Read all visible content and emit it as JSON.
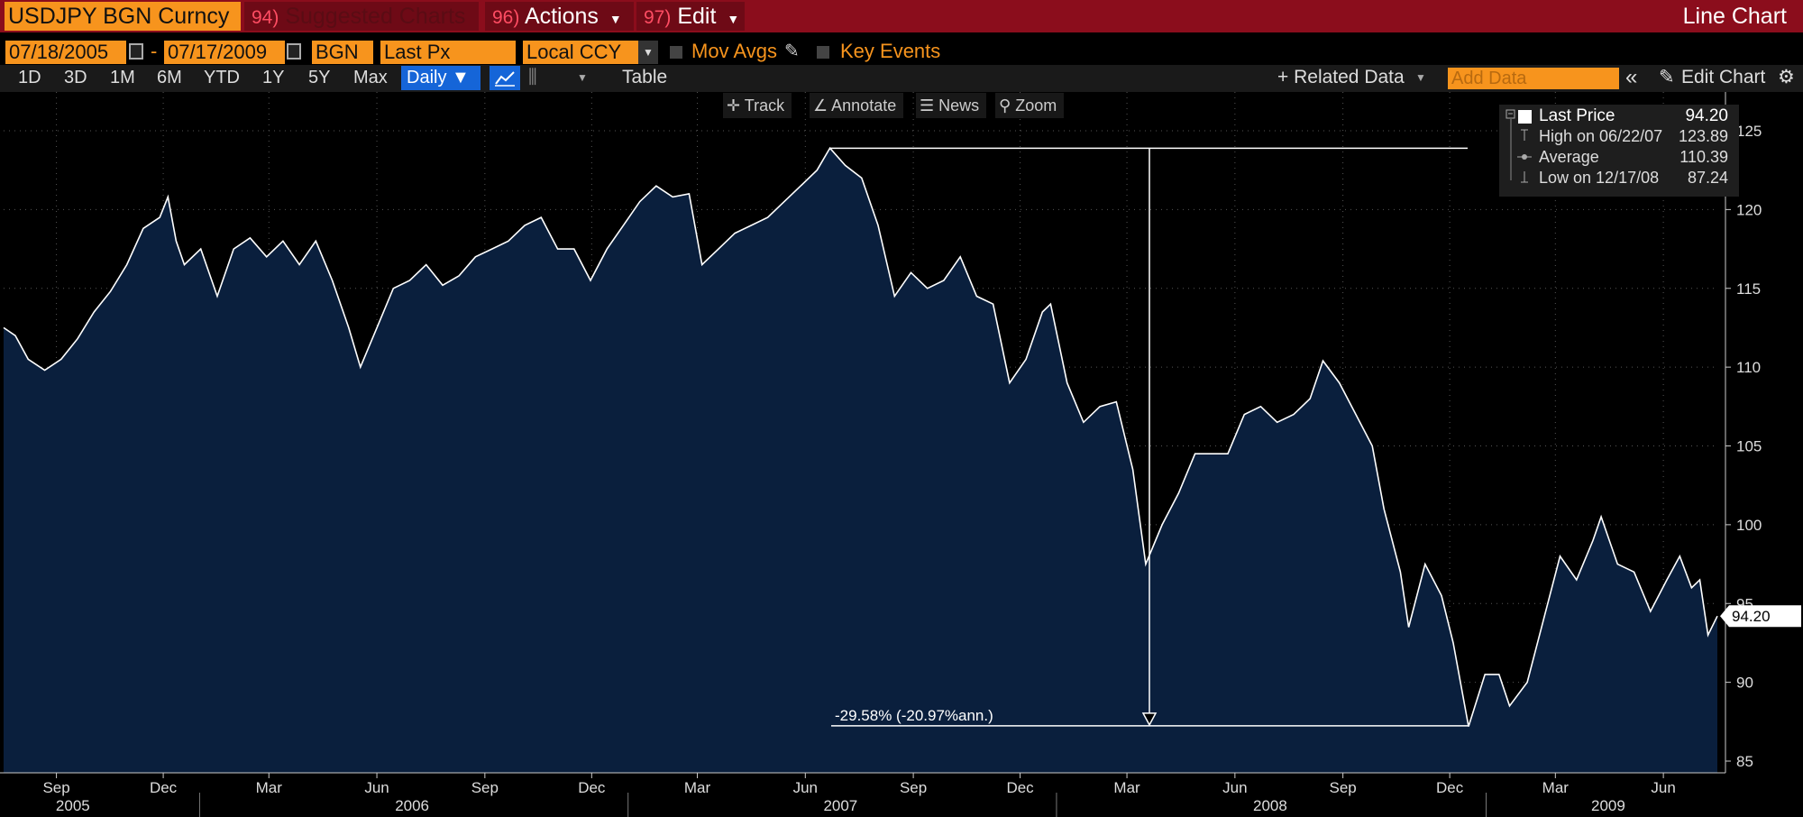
{
  "titlebar": {
    "ticker": "USDJPY BGN Curncy",
    "suggested": {
      "num": "94)",
      "label": "Suggested Charts"
    },
    "actions": {
      "num": "96)",
      "label": "Actions"
    },
    "edit": {
      "num": "97)",
      "label": "Edit"
    },
    "chart_type": "Line Chart"
  },
  "controls": {
    "start_date": "07/18/2005",
    "separator": "-",
    "end_date": "07/17/2009",
    "source": "BGN",
    "field": "Last Px",
    "currency": "Local CCY",
    "mov_avgs": "Mov Avgs",
    "key_events": "Key Events"
  },
  "periods": [
    "1D",
    "3D",
    "1M",
    "6M",
    "YTD",
    "1Y",
    "5Y",
    "Max"
  ],
  "frequency": "Daily",
  "toolbar": {
    "table": "Table",
    "related_data": "+ Related Data",
    "add_data_placeholder": "Add Data",
    "edit_chart": "Edit Chart"
  },
  "chart_tools": {
    "track": "Track",
    "annotate": "Annotate",
    "news": "News",
    "zoom": "Zoom"
  },
  "legend": {
    "last_price": {
      "label": "Last Price",
      "value": "94.20"
    },
    "high": {
      "label": "High on 06/22/07",
      "value": "123.89"
    },
    "average": {
      "label": "Average",
      "value": "110.39"
    },
    "low": {
      "label": "Low on 12/17/08",
      "value": "87.24"
    }
  },
  "annotation": {
    "text": "-29.58% (-20.97%ann.)",
    "from": 123.89,
    "to": 87.24
  },
  "last_price_tag": "94.20",
  "colors": {
    "titlebar": "#8b0d1c",
    "orange": "#f7941d",
    "area": "#0a1f3d",
    "line": "#ffffff",
    "blue": "#1565d8"
  },
  "chart_data": {
    "type": "area",
    "title": "",
    "xlabel": "",
    "ylabel": "",
    "ylim": [
      84,
      126
    ],
    "yticks": [
      85,
      90,
      95,
      100,
      105,
      110,
      115,
      120,
      125
    ],
    "month_ticks": [
      {
        "label": "Sep",
        "x": "2005-09-01"
      },
      {
        "label": "Dec",
        "x": "2005-12-01"
      },
      {
        "label": "Mar",
        "x": "2006-03-01"
      },
      {
        "label": "Jun",
        "x": "2006-06-01"
      },
      {
        "label": "Sep",
        "x": "2006-09-01"
      },
      {
        "label": "Dec",
        "x": "2006-12-01"
      },
      {
        "label": "Mar",
        "x": "2007-03-01"
      },
      {
        "label": "Jun",
        "x": "2007-06-01"
      },
      {
        "label": "Sep",
        "x": "2007-09-01"
      },
      {
        "label": "Dec",
        "x": "2007-12-01"
      },
      {
        "label": "Mar",
        "x": "2008-03-01"
      },
      {
        "label": "Jun",
        "x": "2008-06-01"
      },
      {
        "label": "Sep",
        "x": "2008-09-01"
      },
      {
        "label": "Dec",
        "x": "2008-12-01"
      },
      {
        "label": "Mar",
        "x": "2009-03-01"
      },
      {
        "label": "Jun",
        "x": "2009-06-01"
      }
    ],
    "year_labels": [
      {
        "label": "2005",
        "x": "2005-09-15"
      },
      {
        "label": "2006",
        "x": "2006-07-01"
      },
      {
        "label": "2007",
        "x": "2007-07-01"
      },
      {
        "label": "2008",
        "x": "2008-07-01"
      },
      {
        "label": "2009",
        "x": "2009-04-15"
      }
    ],
    "series": [
      {
        "values": [
          [
            "2005-07-18",
            112.5
          ],
          [
            "2005-07-28",
            112.0
          ],
          [
            "2005-08-08",
            110.5
          ],
          [
            "2005-08-22",
            109.8
          ],
          [
            "2005-09-05",
            110.5
          ],
          [
            "2005-09-19",
            111.8
          ],
          [
            "2005-10-03",
            113.5
          ],
          [
            "2005-10-17",
            114.8
          ],
          [
            "2005-10-31",
            116.5
          ],
          [
            "2005-11-14",
            118.8
          ],
          [
            "2005-11-28",
            119.5
          ],
          [
            "2005-12-05",
            120.8
          ],
          [
            "2005-12-12",
            118.0
          ],
          [
            "2005-12-19",
            116.5
          ],
          [
            "2006-01-02",
            117.5
          ],
          [
            "2006-01-16",
            114.5
          ],
          [
            "2006-01-30",
            117.5
          ],
          [
            "2006-02-13",
            118.2
          ],
          [
            "2006-02-27",
            117.0
          ],
          [
            "2006-03-13",
            118.0
          ],
          [
            "2006-03-27",
            116.5
          ],
          [
            "2006-04-10",
            118.0
          ],
          [
            "2006-04-24",
            115.5
          ],
          [
            "2006-05-08",
            112.5
          ],
          [
            "2006-05-18",
            110.0
          ],
          [
            "2006-06-01",
            112.5
          ],
          [
            "2006-06-15",
            115.0
          ],
          [
            "2006-06-29",
            115.5
          ],
          [
            "2006-07-13",
            116.5
          ],
          [
            "2006-07-27",
            115.2
          ],
          [
            "2006-08-10",
            115.8
          ],
          [
            "2006-08-24",
            117.0
          ],
          [
            "2006-09-07",
            117.5
          ],
          [
            "2006-09-21",
            118.0
          ],
          [
            "2006-10-05",
            119.0
          ],
          [
            "2006-10-19",
            119.5
          ],
          [
            "2006-11-02",
            117.5
          ],
          [
            "2006-11-16",
            117.5
          ],
          [
            "2006-11-30",
            115.5
          ],
          [
            "2006-12-14",
            117.5
          ],
          [
            "2006-12-28",
            119.0
          ],
          [
            "2007-01-11",
            120.5
          ],
          [
            "2007-01-25",
            121.5
          ],
          [
            "2007-02-08",
            120.8
          ],
          [
            "2007-02-22",
            121.0
          ],
          [
            "2007-03-05",
            116.5
          ],
          [
            "2007-03-19",
            117.5
          ],
          [
            "2007-04-02",
            118.5
          ],
          [
            "2007-04-16",
            119.0
          ],
          [
            "2007-04-30",
            119.5
          ],
          [
            "2007-05-14",
            120.5
          ],
          [
            "2007-05-28",
            121.5
          ],
          [
            "2007-06-11",
            122.5
          ],
          [
            "2007-06-22",
            123.9
          ],
          [
            "2007-07-05",
            122.8
          ],
          [
            "2007-07-19",
            122.0
          ],
          [
            "2007-08-02",
            119.0
          ],
          [
            "2007-08-16",
            114.5
          ],
          [
            "2007-08-30",
            116.0
          ],
          [
            "2007-09-13",
            115.0
          ],
          [
            "2007-09-27",
            115.5
          ],
          [
            "2007-10-11",
            117.0
          ],
          [
            "2007-10-25",
            114.5
          ],
          [
            "2007-11-08",
            114.0
          ],
          [
            "2007-11-22",
            109.0
          ],
          [
            "2007-12-06",
            110.5
          ],
          [
            "2007-12-20",
            113.5
          ],
          [
            "2007-12-27",
            114.0
          ],
          [
            "2008-01-10",
            109.0
          ],
          [
            "2008-01-24",
            106.5
          ],
          [
            "2008-02-07",
            107.5
          ],
          [
            "2008-02-21",
            107.8
          ],
          [
            "2008-03-06",
            103.5
          ],
          [
            "2008-03-17",
            97.5
          ],
          [
            "2008-03-31",
            100.0
          ],
          [
            "2008-04-14",
            102.0
          ],
          [
            "2008-04-28",
            104.5
          ],
          [
            "2008-05-12",
            104.5
          ],
          [
            "2008-05-26",
            104.5
          ],
          [
            "2008-06-09",
            107.0
          ],
          [
            "2008-06-23",
            107.5
          ],
          [
            "2008-07-07",
            106.5
          ],
          [
            "2008-07-21",
            107.0
          ],
          [
            "2008-08-04",
            108.0
          ],
          [
            "2008-08-15",
            110.4
          ],
          [
            "2008-08-29",
            109.0
          ],
          [
            "2008-09-12",
            107.0
          ],
          [
            "2008-09-26",
            105.0
          ],
          [
            "2008-10-06",
            101.0
          ],
          [
            "2008-10-20",
            97.0
          ],
          [
            "2008-10-27",
            93.5
          ],
          [
            "2008-11-10",
            97.5
          ],
          [
            "2008-11-24",
            95.5
          ],
          [
            "2008-12-04",
            92.5
          ],
          [
            "2008-12-17",
            87.2
          ],
          [
            "2008-12-31",
            90.5
          ],
          [
            "2009-01-12",
            90.5
          ],
          [
            "2009-01-21",
            88.5
          ],
          [
            "2009-02-05",
            90.0
          ],
          [
            "2009-02-19",
            94.0
          ],
          [
            "2009-03-05",
            98.0
          ],
          [
            "2009-03-19",
            96.5
          ],
          [
            "2009-04-02",
            99.0
          ],
          [
            "2009-04-09",
            100.5
          ],
          [
            "2009-04-23",
            97.5
          ],
          [
            "2009-05-07",
            97.0
          ],
          [
            "2009-05-21",
            94.5
          ],
          [
            "2009-06-04",
            96.5
          ],
          [
            "2009-06-15",
            98.0
          ],
          [
            "2009-06-25",
            96.0
          ],
          [
            "2009-07-02",
            96.5
          ],
          [
            "2009-07-09",
            93.0
          ],
          [
            "2009-07-17",
            94.2
          ]
        ]
      }
    ]
  }
}
